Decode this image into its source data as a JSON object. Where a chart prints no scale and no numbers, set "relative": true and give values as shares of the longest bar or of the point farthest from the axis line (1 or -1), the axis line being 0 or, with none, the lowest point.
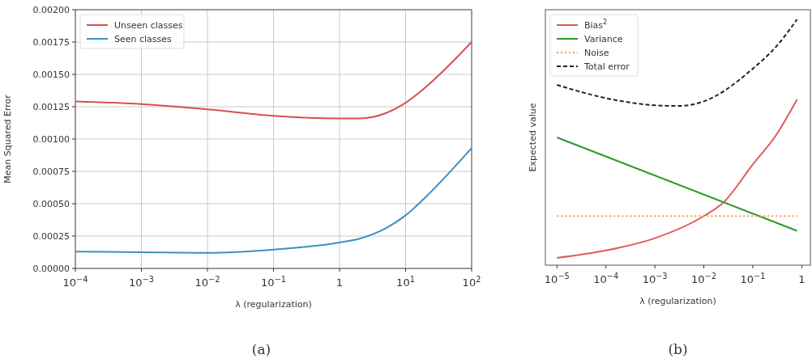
{
  "chart_data": [
    {
      "type": "line",
      "xlabel": "λ (regularization)",
      "ylabel": "Mean Squared Error",
      "log": "x",
      "xlim": [
        0.0001,
        100
      ],
      "xticks": [
        {
          "value": 0.0001,
          "label": "10$^{−4}$"
        },
        {
          "value": 0.001,
          "label": "10$^{−3}$"
        },
        {
          "value": 0.01,
          "label": "10$^{−2}$"
        },
        {
          "value": 0.1,
          "label": "10$^{−1}$"
        },
        1,
        {
          "value": 10,
          "label": "10$^{1}$"
        },
        {
          "value": 100,
          "label": "10$^{2}$"
        }
      ],
      "ylim": [
        0,
        0.002
      ],
      "yticks": [
        {
          "value": 0,
          "label": "0.00000"
        },
        {
          "value": 0.00025,
          "label": "0.00025"
        },
        {
          "value": 0.0005,
          "label": "0.00050"
        },
        {
          "value": 0.00075,
          "label": "0.00075"
        },
        {
          "value": 0.001,
          "label": "0.00100"
        },
        {
          "value": 0.00125,
          "label": "0.00125"
        },
        {
          "value": 0.0015,
          "label": "0.00150"
        },
        {
          "value": 0.00175,
          "label": "0.00175"
        },
        {
          "value": 0.002,
          "label": "0.00200"
        }
      ],
      "grid": true,
      "legend": "top left",
      "x": [
        0.0001,
        0.001,
        0.01,
        0.1,
        1,
        2,
        5,
        10,
        20,
        100
      ],
      "series": [
        {
          "name": "Unseen classes",
          "color": "#d94f4f",
          "values": [
            0.00129,
            0.00127,
            0.00123,
            0.00118,
            0.00116,
            0.00116,
            0.0012,
            0.00128,
            0.0014,
            0.00175
          ]
        },
        {
          "name": "Seen classes",
          "color": "#3d8fc6",
          "values": [
            0.00013,
            0.000125,
            0.00012,
            0.000145,
            0.0002,
            0.00023,
            0.00031,
            0.00041,
            0.00055,
            0.00093
          ]
        }
      ],
      "annotations": [
        "(a)"
      ]
    },
    {
      "type": "line",
      "xlabel": "λ (regularization)",
      "ylabel": "Expected value",
      "log": "x",
      "relative": true,
      "tick_labels": "x",
      "xlim": [
        5.8e-06,
        1.5
      ],
      "xticks": [
        {
          "value": 1e-05,
          "label": "10$^{−5}$"
        },
        {
          "value": 0.0001,
          "label": "10$^{−4}$"
        },
        {
          "value": 0.001,
          "label": "10$^{−3}$"
        },
        {
          "value": 0.01,
          "label": "10$^{−2}$"
        },
        {
          "value": 0.1,
          "label": "10$^{−1}$"
        },
        1
      ],
      "legend": "top left",
      "series": [
        {
          "name": "Bias$^{2}$",
          "color": "#e05a5a",
          "line_style": "solid",
          "x": [
            1e-05,
            0.0001,
            0.001,
            0.01,
            0.025,
            0.1,
            0.3,
            0.8
          ],
          "values": [
            0.03,
            0.06,
            0.11,
            0.2,
            0.255,
            0.41,
            0.53,
            0.675
          ]
        },
        {
          "name": "Variance",
          "color": "#2a9a2a",
          "line_style": "solid",
          "x": [
            1e-05,
            0.8
          ],
          "values": [
            0.52,
            0.14
          ]
        },
        {
          "name": "Noise",
          "color": "#ff9a40",
          "line_style": "dotted",
          "x": [
            1e-05,
            0.8
          ],
          "values": [
            0.2,
            0.2
          ]
        },
        {
          "name": "Total error",
          "color": "#222222",
          "line_style": "dashed",
          "x": [
            1e-05,
            0.0001,
            0.001,
            0.003,
            0.01,
            0.1,
            0.3,
            0.8
          ],
          "values": [
            0.734,
            0.68,
            0.651,
            0.648,
            0.667,
            0.8,
            0.89,
            1
          ]
        }
      ],
      "annotations": [
        "(b)"
      ]
    }
  ]
}
